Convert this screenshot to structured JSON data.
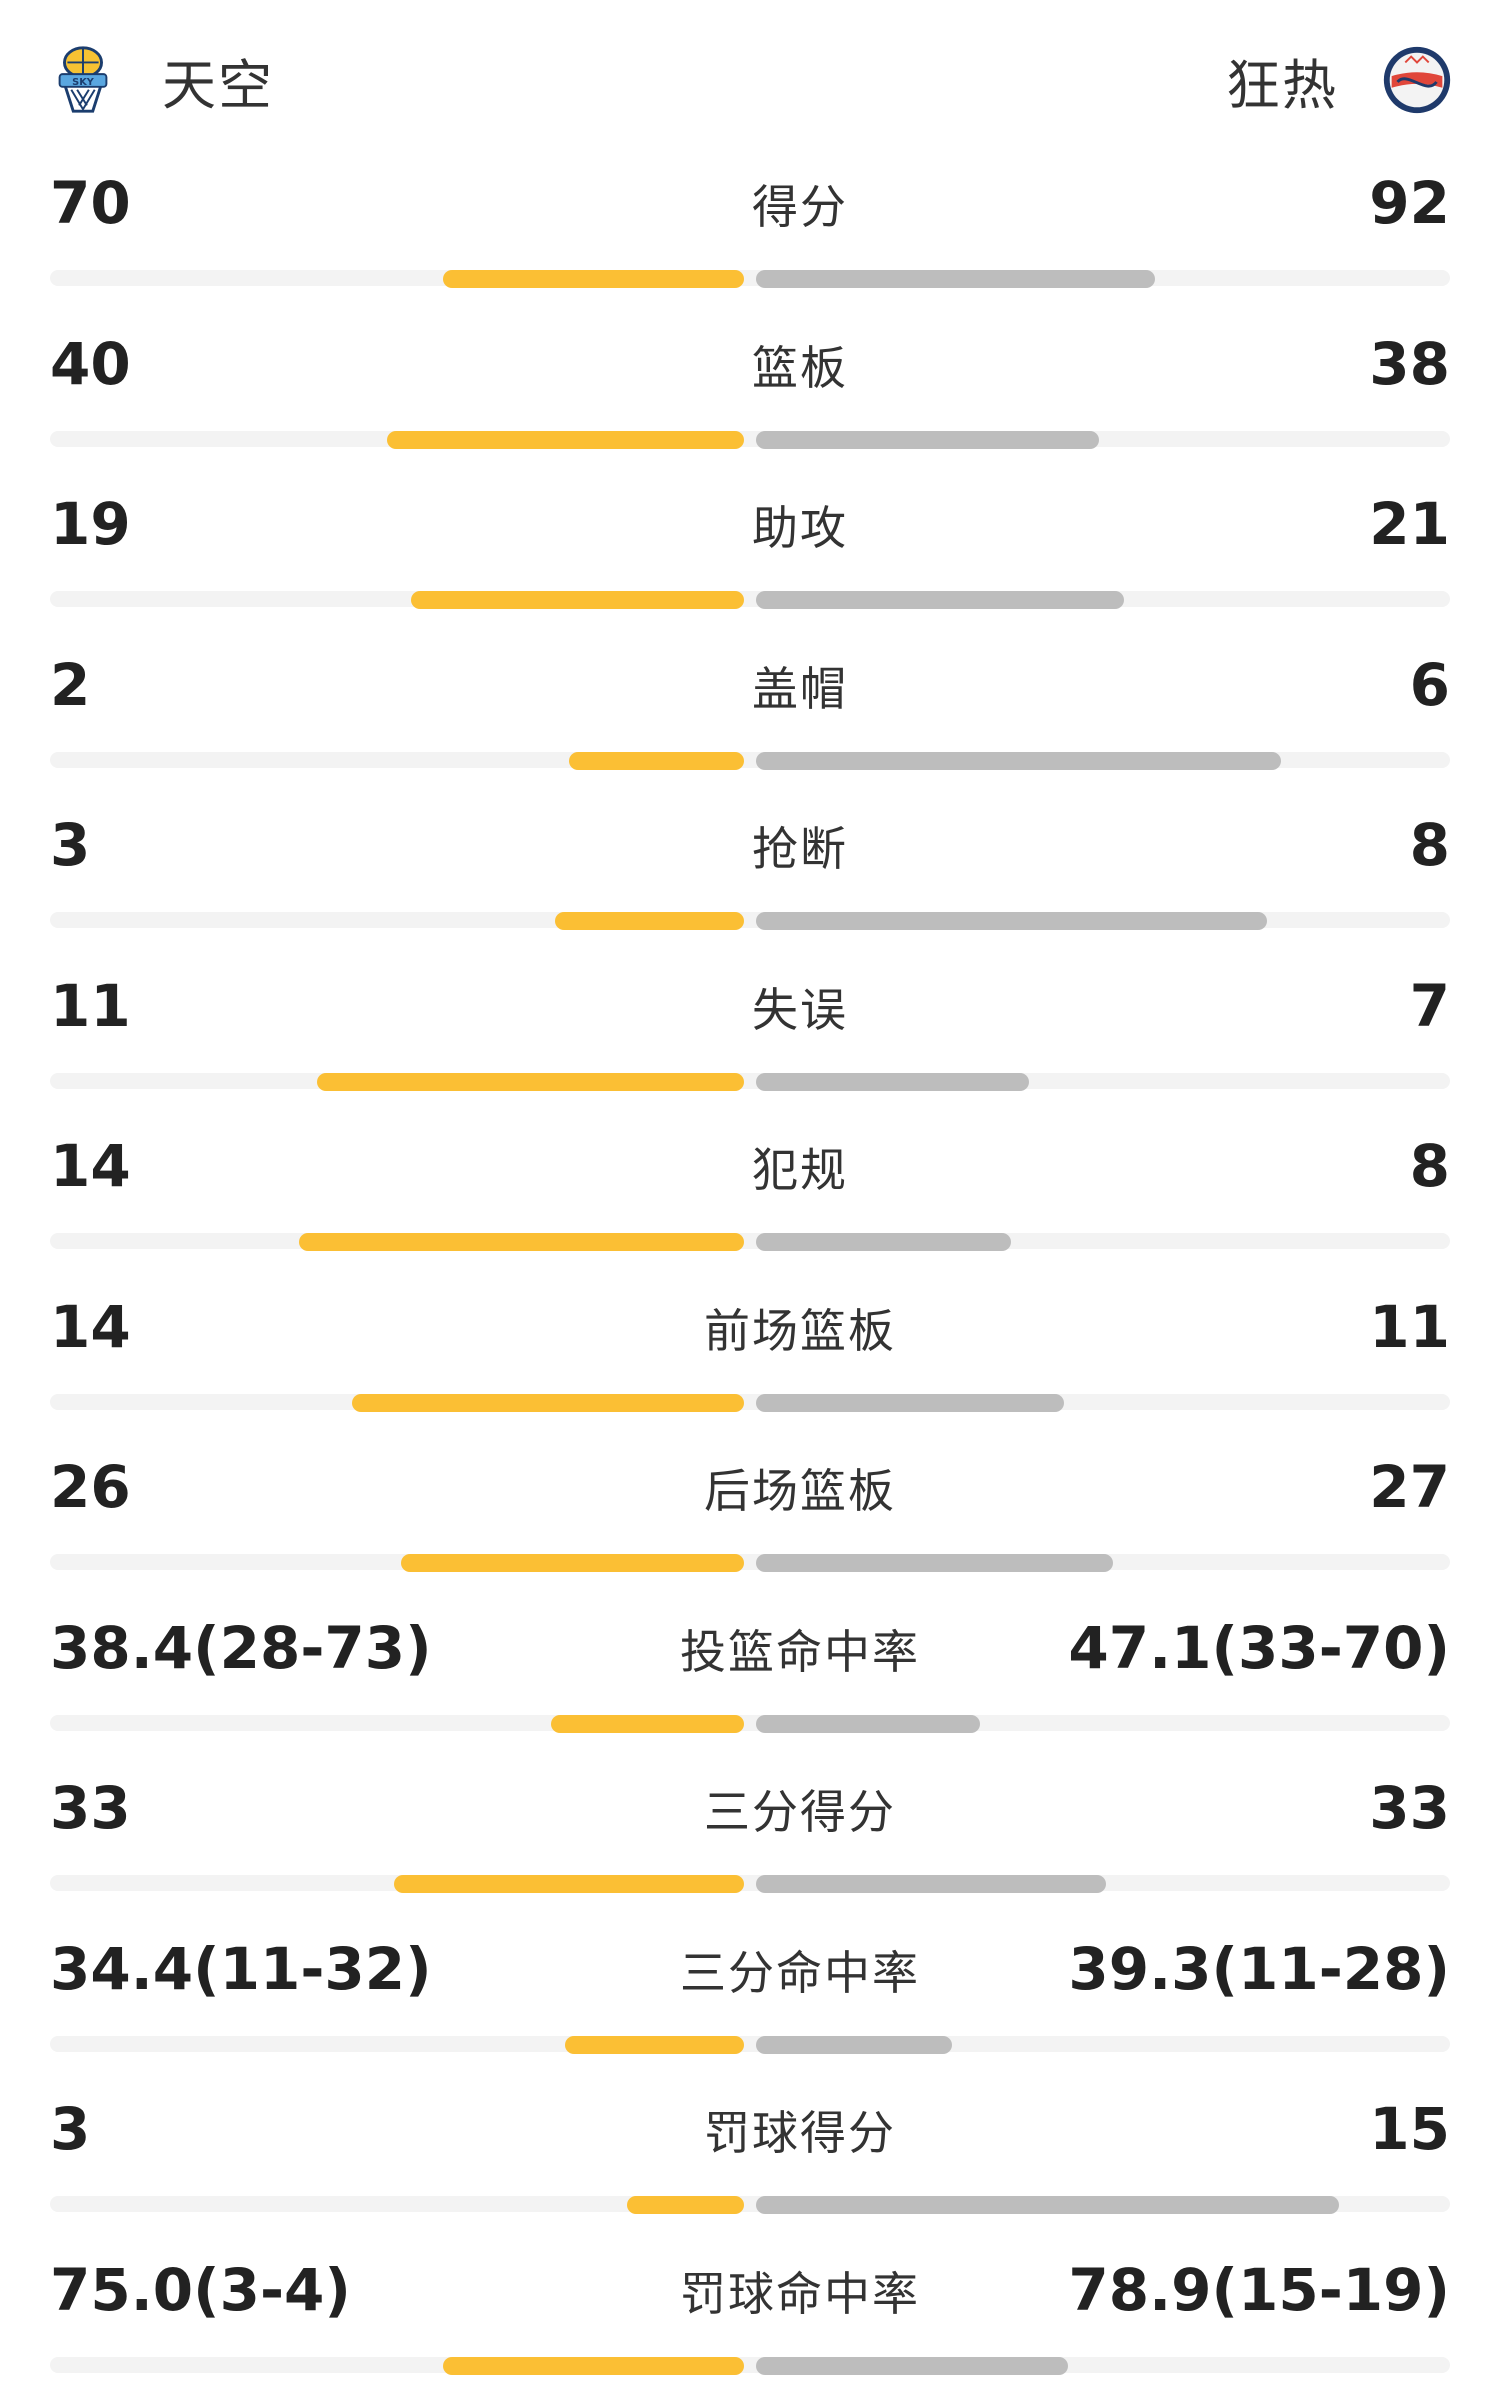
{
  "home": {
    "name": "天空",
    "logo_icon": "chicago-sky-logo-icon",
    "bar_color": "#fbbf34"
  },
  "away": {
    "name": "狂热",
    "logo_icon": "indiana-fever-logo-icon",
    "bar_color": "#bdbdbd"
  },
  "stats": [
    {
      "label": "得分",
      "home": "70",
      "away": "92",
      "home_fraction": 0.43,
      "away_fraction": 0.57
    },
    {
      "label": "篮板",
      "home": "40",
      "away": "38",
      "home_fraction": 0.51,
      "away_fraction": 0.49
    },
    {
      "label": "助攻",
      "home": "19",
      "away": "21",
      "home_fraction": 0.475,
      "away_fraction": 0.525
    },
    {
      "label": "盖帽",
      "home": "2",
      "away": "6",
      "home_fraction": 0.25,
      "away_fraction": 0.75
    },
    {
      "label": "抢断",
      "home": "3",
      "away": "8",
      "home_fraction": 0.27,
      "away_fraction": 0.73
    },
    {
      "label": "失误",
      "home": "11",
      "away": "7",
      "home_fraction": 0.61,
      "away_fraction": 0.39
    },
    {
      "label": "犯规",
      "home": "14",
      "away": "8",
      "home_fraction": 0.636,
      "away_fraction": 0.364
    },
    {
      "label": "前场篮板",
      "home": "14",
      "away": "11",
      "home_fraction": 0.56,
      "away_fraction": 0.44
    },
    {
      "label": "后场篮板",
      "home": "26",
      "away": "27",
      "home_fraction": 0.49,
      "away_fraction": 0.51
    },
    {
      "label": "投篮命中率",
      "home": "38.4(28-73)",
      "away": "47.1(33-70)",
      "home_fraction": 0.275,
      "away_fraction": 0.32
    },
    {
      "label": "三分得分",
      "home": "33",
      "away": "33",
      "home_fraction": 0.5,
      "away_fraction": 0.5
    },
    {
      "label": "三分命中率",
      "home": "34.4(11-32)",
      "away": "39.3(11-28)",
      "home_fraction": 0.255,
      "away_fraction": 0.28
    },
    {
      "label": "罚球得分",
      "home": "3",
      "away": "15",
      "home_fraction": 0.167,
      "away_fraction": 0.833
    },
    {
      "label": "罚球命中率",
      "home": "75.0(3-4)",
      "away": "78.9(15-19)",
      "home_fraction": 0.43,
      "away_fraction": 0.445
    }
  ]
}
